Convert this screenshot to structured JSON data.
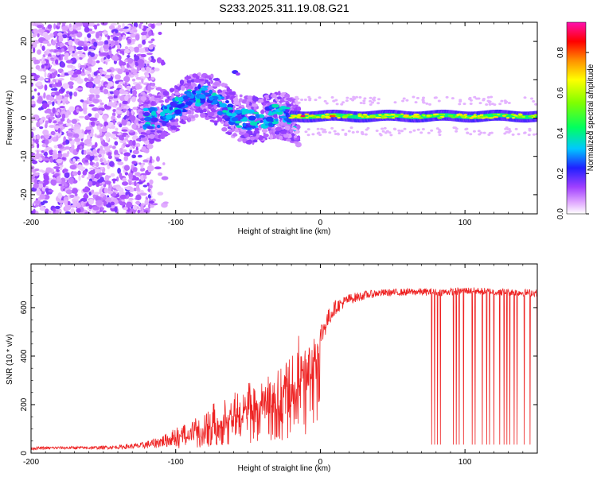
{
  "title": "S233.2025.311.19.08.G21",
  "chart_data": [
    {
      "type": "heatmap",
      "title": "S233.2025.311.19.08.G21",
      "xlabel": "Height of straight line (km)",
      "ylabel": "Frequency (Hz)",
      "xlim": [
        -200,
        150
      ],
      "ylim": [
        -25,
        25
      ],
      "xticks": [
        -200,
        -100,
        0,
        100
      ],
      "xtick_labels": [
        "-200",
        "-100",
        "0",
        "100"
      ],
      "yticks": [
        -20,
        -10,
        0,
        10,
        20
      ],
      "ytick_labels": [
        "-20",
        "-10",
        "0",
        "10",
        "20"
      ],
      "colorbar": {
        "label": "Normalized spectral amplitude",
        "range": [
          0,
          0.95
        ],
        "ticks": [
          0.0,
          0.2,
          0.4,
          0.6,
          0.8
        ],
        "tick_labels": [
          "0.0",
          "0.2",
          "0.4",
          "0.6",
          "0.8"
        ],
        "colors": [
          "#ffffff",
          "#d98cff",
          "#8a2be2",
          "#0000ff",
          "#00e5ff",
          "#00ff40",
          "#ffff00",
          "#ff8000",
          "#ff0000",
          "#ff00aa"
        ]
      },
      "regions": [
        {
          "name": "noise",
          "x_range": [
            -200,
            -115
          ],
          "freq_range": [
            -25,
            25
          ],
          "amplitude": 0.1
        },
        {
          "name": "transition",
          "x_range": [
            -125,
            -15
          ],
          "freq_range": [
            -8,
            13
          ],
          "amplitude": 0.25
        },
        {
          "name": "tone",
          "x_range": [
            -20,
            150
          ],
          "freq_center": 0.5,
          "freq_halfwidth": 1.5,
          "amplitude": 0.4
        }
      ]
    },
    {
      "type": "line",
      "xlabel": "Height of straight line (km)",
      "ylabel": "SNR (10 * v/v)",
      "xlim": [
        -200,
        150
      ],
      "ylim": [
        0,
        780
      ],
      "xticks": [
        -200,
        -100,
        0,
        100
      ],
      "xtick_labels": [
        "-200",
        "-100",
        "0",
        "100"
      ],
      "yticks": [
        0,
        200,
        400,
        600
      ],
      "ytick_labels": [
        "0",
        "200",
        "400",
        "600"
      ],
      "color": "#ee2222",
      "series": [
        {
          "name": "SNR",
          "x": [
            -200,
            -180,
            -160,
            -140,
            -125,
            -115,
            -105,
            -95,
            -85,
            -75,
            -65,
            -55,
            -45,
            -35,
            -25,
            -18,
            -10,
            -5,
            0,
            5,
            10,
            20,
            30,
            40,
            50,
            60,
            70,
            80,
            90,
            100,
            110,
            120,
            130,
            140,
            150
          ],
          "y": [
            20,
            22,
            22,
            25,
            30,
            40,
            55,
            85,
            110,
            140,
            170,
            195,
            215,
            240,
            265,
            300,
            340,
            400,
            480,
            550,
            600,
            635,
            650,
            660,
            662,
            664,
            665,
            663,
            665,
            670,
            668,
            665,
            664,
            662,
            660
          ],
          "noise": [
            6,
            6,
            6,
            8,
            12,
            20,
            30,
            45,
            55,
            65,
            75,
            85,
            90,
            95,
            100,
            110,
            90,
            70,
            55,
            40,
            30,
            22,
            18,
            15,
            15,
            15,
            15,
            15,
            15,
            15,
            15,
            15,
            15,
            15,
            15
          ]
        }
      ],
      "dropouts": {
        "value": 35,
        "x": [
          77,
          79,
          81,
          83,
          92,
          94,
          96,
          99,
          105,
          107,
          112,
          115,
          117,
          120,
          124,
          127,
          129,
          131,
          134,
          136,
          141,
          145,
          150
        ]
      }
    }
  ]
}
